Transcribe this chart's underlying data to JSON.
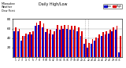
{
  "title": "Milwaukee Weather Dew Point",
  "subtitle": "Daily High/Low",
  "high_color": "#dd0000",
  "low_color": "#0000cc",
  "background_color": "#ffffff",
  "plot_bg": "#ffffff",
  "ylim": [
    0,
    80
  ],
  "yticks": [
    20,
    40,
    60,
    80
  ],
  "ytick_labels": [
    "20",
    "40",
    "60",
    "80"
  ],
  "days": [
    "1",
    "2",
    "3",
    "4",
    "5",
    "6",
    "7",
    "8",
    "9",
    "10",
    "11",
    "12",
    "13",
    "14",
    "15",
    "16",
    "17",
    "18",
    "19",
    "20",
    "21",
    "22",
    "23",
    "24",
    "25",
    "26",
    "27",
    "28",
    "29",
    "30",
    "31"
  ],
  "high": [
    62,
    60,
    45,
    50,
    52,
    55,
    72,
    75,
    70,
    60,
    58,
    55,
    68,
    65,
    68,
    68,
    66,
    65,
    62,
    55,
    38,
    30,
    38,
    42,
    48,
    52,
    55,
    58,
    62,
    65,
    45
  ],
  "low": [
    55,
    55,
    35,
    45,
    47,
    48,
    65,
    68,
    62,
    52,
    50,
    48,
    60,
    58,
    60,
    60,
    58,
    58,
    55,
    45,
    28,
    20,
    28,
    35,
    40,
    45,
    48,
    50,
    55,
    58,
    10
  ],
  "dotted_lines": [
    21,
    22
  ],
  "legend_high": "High",
  "legend_low": "Low"
}
